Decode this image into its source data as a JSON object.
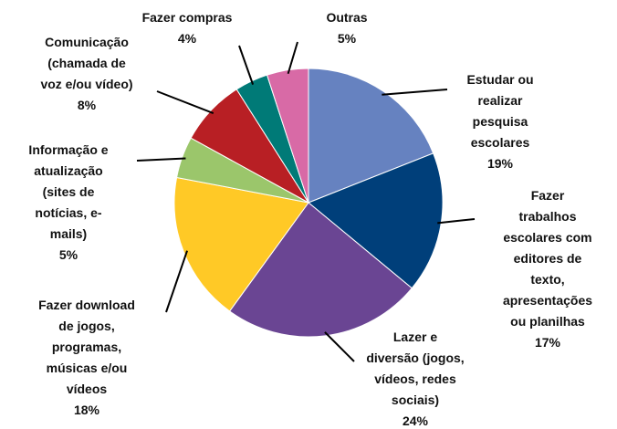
{
  "chart_data": {
    "type": "pie",
    "categories": [
      "Estudar ou\nrealizar\npesquisa\nescolares",
      "Fazer trabalhos\nescolares com\neditores de\ntexto,\napresentações\nou planilhas",
      "Lazer e\ndiversão (jogos,\nvídeos, redes\nsociais)",
      "Fazer download\nde jogos,\nprogramas,\nmúsicas e/ou\nvídeos",
      "Informação e\natualização\n(sites de\nnotícias, e-\nmails)",
      "Comunicação\n(chamada de\nvoz e/ou vídeo)",
      "Fazer compras",
      "Outras"
    ],
    "values": [
      19,
      17,
      24,
      18,
      5,
      8,
      4,
      5
    ],
    "value_labels": [
      "19%",
      "17%",
      "24%",
      "18%",
      "5%",
      "8%",
      "4%",
      "5%"
    ],
    "colors": [
      "#6682c0",
      "#003f7a",
      "#6a4593",
      "#ffc926",
      "#9bc66b",
      "#b81f24",
      "#007a77",
      "#d86aa6"
    ]
  }
}
